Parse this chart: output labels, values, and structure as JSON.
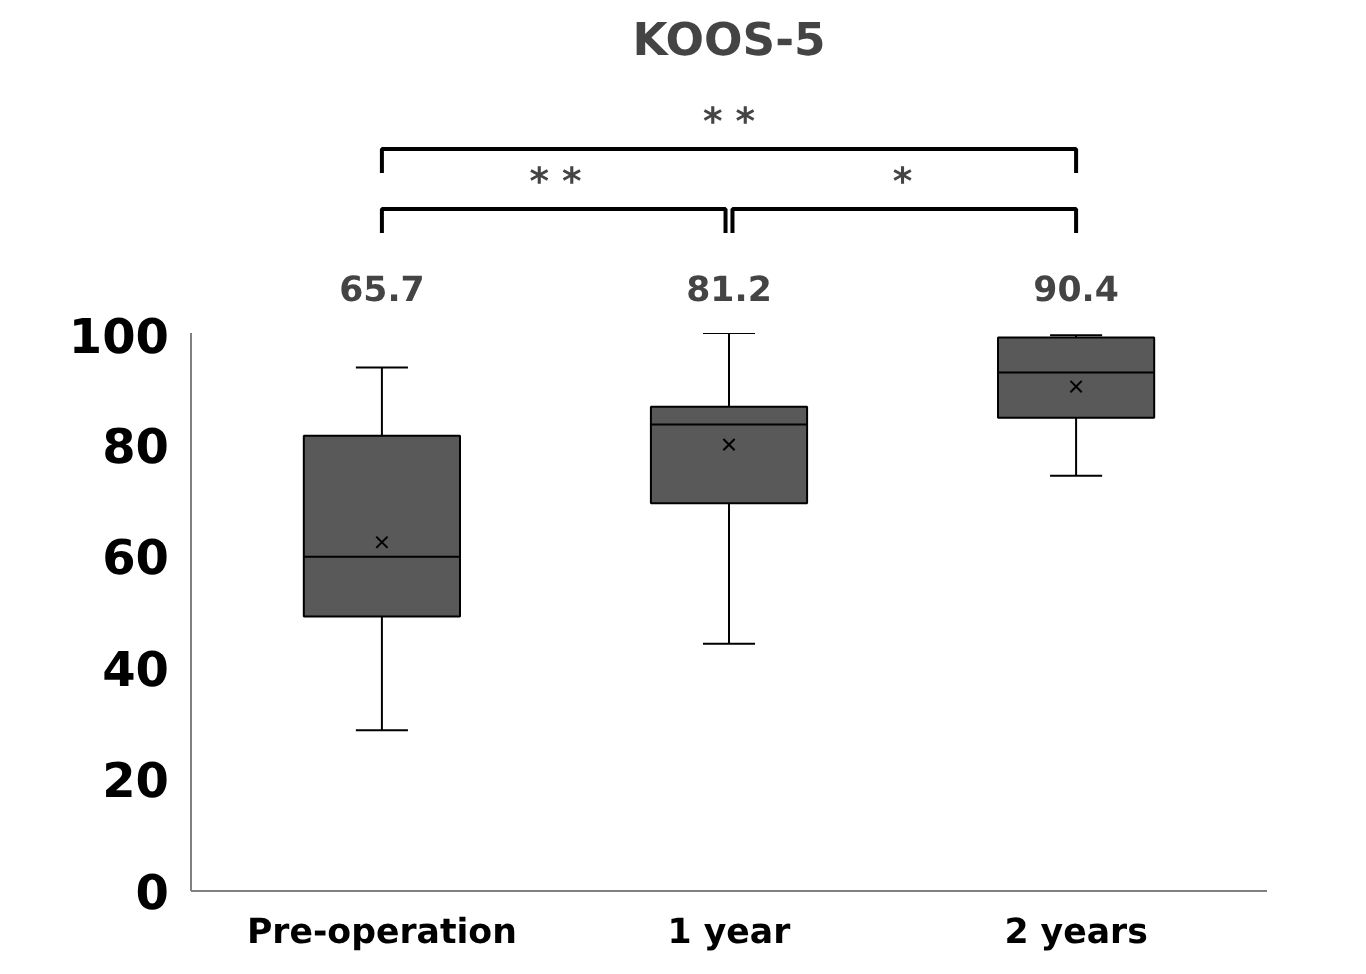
{
  "chart_data": {
    "type": "box",
    "title": "KOOS-5",
    "categories": [
      "Pre-operation",
      "1 year",
      "2 years"
    ],
    "color": "#595959",
    "boxes": [
      {
        "low": 28.8,
        "q1": 49.2,
        "median": 59.9,
        "q3": 81.6,
        "high": 93.8,
        "mean": 62.5
      },
      {
        "low": 44.3,
        "q1": 69.5,
        "median": 83.6,
        "q3": 86.8,
        "high": 100,
        "mean": 80.0
      },
      {
        "low": 74.4,
        "q1": 84.8,
        "median": 92.9,
        "q3": 99.2,
        "high": 99.6,
        "mean": 90.4
      }
    ],
    "ylim": [
      0,
      100
    ],
    "yticks": [
      0,
      20,
      40,
      60,
      80,
      100
    ],
    "grid": false,
    "annotations": [
      "65.7",
      "81.2",
      "90.4",
      "* *",
      "* *",
      "*"
    ]
  }
}
